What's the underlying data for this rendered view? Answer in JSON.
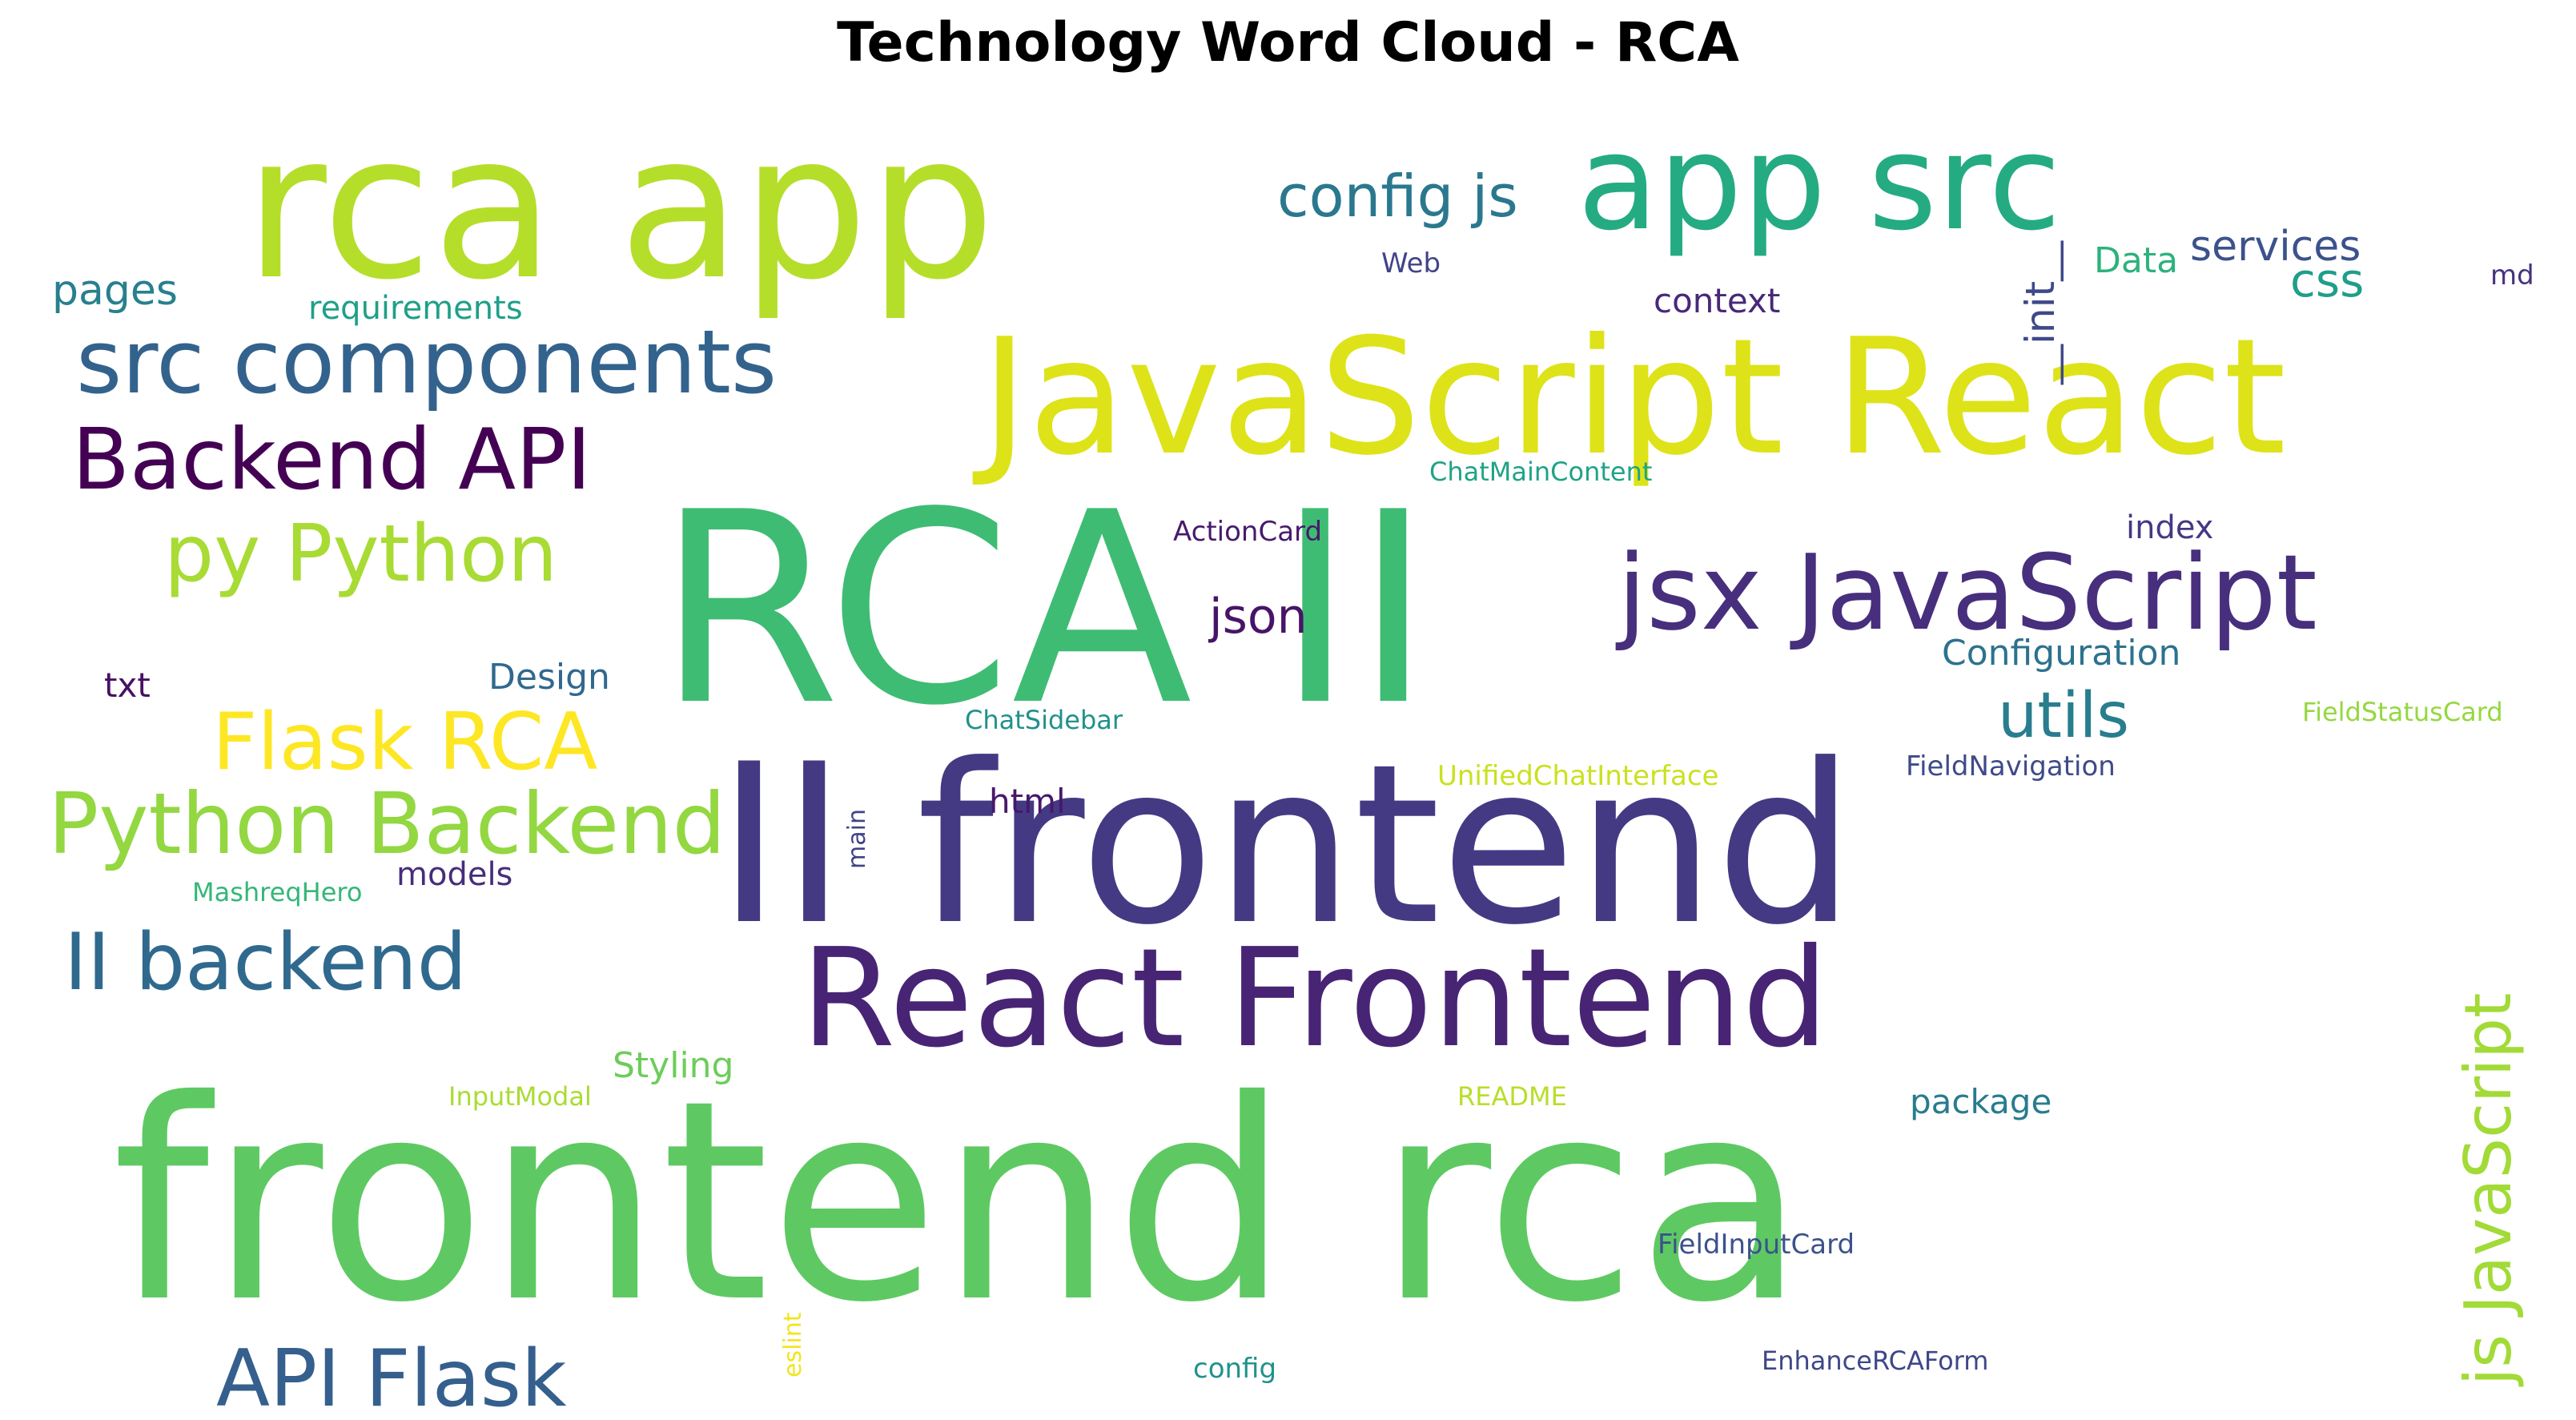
{
  "title": "Technology Word Cloud - RCA",
  "words": [
    {
      "text": "frontend rca",
      "color": "#5ec962"
    },
    {
      "text": "RCA II",
      "color": "#3fbc73"
    },
    {
      "text": "II frontend",
      "color": "#443a83"
    },
    {
      "text": "rca app",
      "color": "#b5de2b"
    },
    {
      "text": "JavaScript React",
      "color": "#dde318"
    },
    {
      "text": "React Frontend",
      "color": "#482475"
    },
    {
      "text": "app src",
      "color": "#25ab82"
    },
    {
      "text": "jsx JavaScript",
      "color": "#472f7d"
    },
    {
      "text": "src components",
      "color": "#33638d"
    },
    {
      "text": "Backend API",
      "color": "#440154"
    },
    {
      "text": "Python Backend",
      "color": "#93d741"
    },
    {
      "text": "py Python",
      "color": "#a8db34"
    },
    {
      "text": "Flask RCA",
      "color": "#fde725"
    },
    {
      "text": "II backend",
      "color": "#30698e"
    },
    {
      "text": "API Flask",
      "color": "#355f8d"
    },
    {
      "text": "js JavaScript",
      "color": "#a2da37"
    },
    {
      "text": "config js",
      "color": "#2a788e"
    },
    {
      "text": "utils",
      "color": "#287d8e"
    },
    {
      "text": "json",
      "color": "#481467"
    },
    {
      "text": "services",
      "color": "#3b528b"
    },
    {
      "text": "css",
      "color": "#1f9e89"
    },
    {
      "text": "Data",
      "color": "#2db27d"
    },
    {
      "text": "md",
      "color": "#46327e"
    },
    {
      "text": "Web",
      "color": "#414487"
    },
    {
      "text": "pages",
      "color": "#27808e"
    },
    {
      "text": "requirements",
      "color": "#1fa088"
    },
    {
      "text": "context",
      "color": "#482878"
    },
    {
      "text": "__init__",
      "color": "#3e4989"
    },
    {
      "text": "ChatMainContent",
      "color": "#20a386"
    },
    {
      "text": "ActionCard",
      "color": "#481a6c"
    },
    {
      "text": "index",
      "color": "#443983"
    },
    {
      "text": "Configuration",
      "color": "#2c728e"
    },
    {
      "text": "txt",
      "color": "#471063"
    },
    {
      "text": "Design",
      "color": "#31688e"
    },
    {
      "text": "ChatSidebar",
      "color": "#21918c"
    },
    {
      "text": "FieldStatusCard",
      "color": "#95d840"
    },
    {
      "text": "UnifiedChatInterface",
      "color": "#cae11f"
    },
    {
      "text": "FieldNavigation",
      "color": "#3e4a89"
    },
    {
      "text": "html",
      "color": "#48186a"
    },
    {
      "text": "main",
      "color": "#414287"
    },
    {
      "text": "models",
      "color": "#472d7b"
    },
    {
      "text": "MashreqHero",
      "color": "#35b779"
    },
    {
      "text": "Styling",
      "color": "#6ccd5a"
    },
    {
      "text": "InputModal",
      "color": "#aadc32"
    },
    {
      "text": "README",
      "color": "#b8de29"
    },
    {
      "text": "package",
      "color": "#287c8e"
    },
    {
      "text": "FieldInputCard",
      "color": "#3b528b"
    },
    {
      "text": "eslint",
      "color": "#f1e51d"
    },
    {
      "text": "config",
      "color": "#20928c"
    },
    {
      "text": "EnhanceRCAForm",
      "color": "#3f4788"
    }
  ]
}
